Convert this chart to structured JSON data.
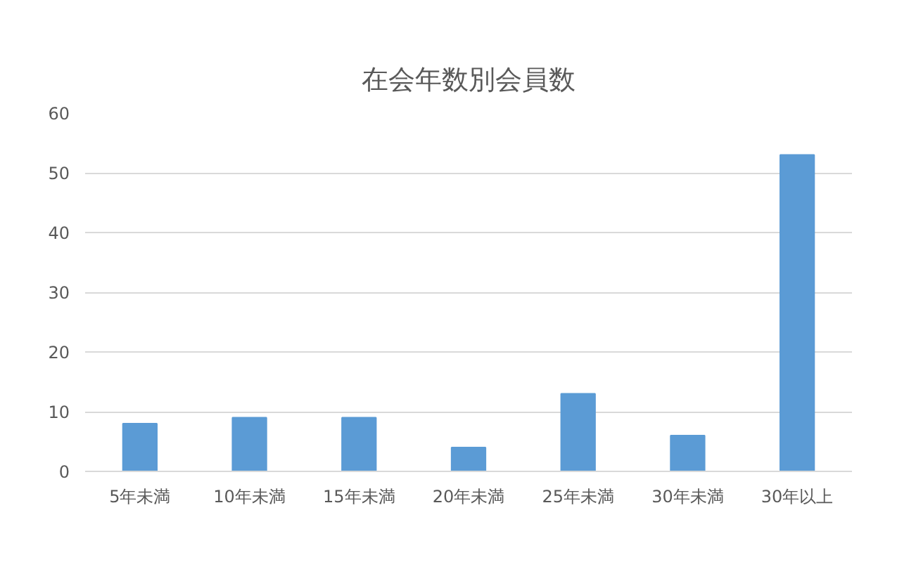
{
  "chart_data": {
    "type": "bar",
    "title": "在会年数別会員数",
    "categories": [
      "5年未満",
      "10年未満",
      "15年未満",
      "20年未満",
      "25年未満",
      "30年未満",
      "30年以上"
    ],
    "values": [
      8,
      9,
      9,
      4,
      13,
      6,
      53
    ],
    "color": "#5b9bd5",
    "ylim": [
      0,
      60
    ],
    "yticks": [
      0,
      10,
      20,
      30,
      40,
      50,
      60
    ],
    "grid": "y"
  }
}
